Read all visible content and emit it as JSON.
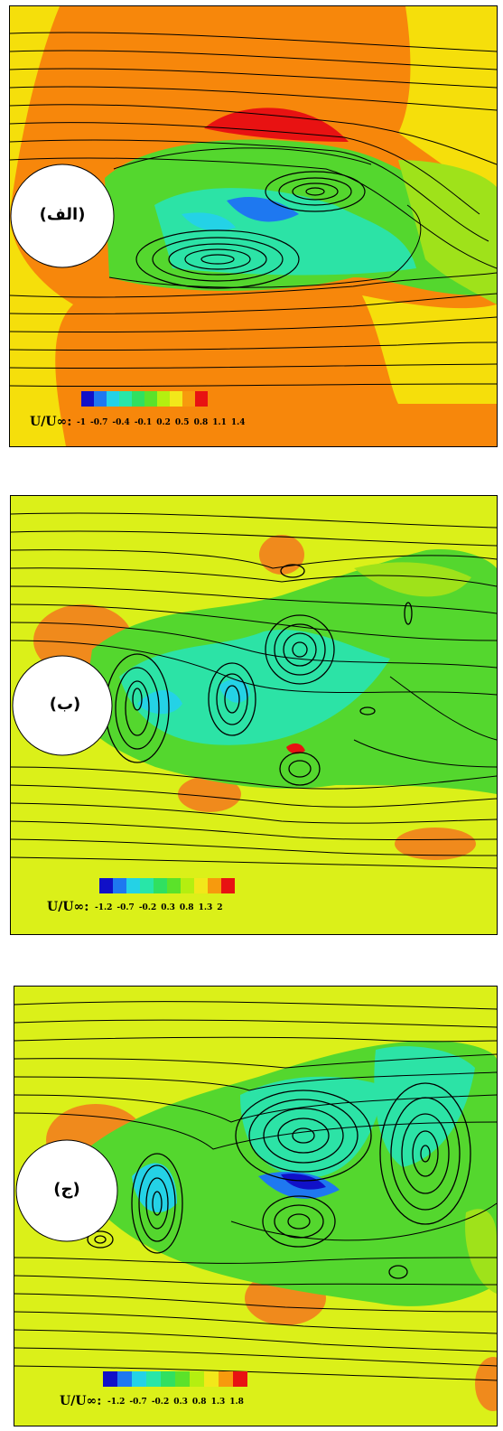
{
  "panels": [
    {
      "label": "(الف)",
      "background": "#f5df0b",
      "legend": {
        "variable": "U/U∞:",
        "ticks": [
          "-1",
          "-0.7",
          "-0.4",
          "-0.1",
          "0.2",
          "0.5",
          "0.8",
          "1.1",
          "1.4"
        ],
        "colors": [
          "#1010c8",
          "#1e78f0",
          "#24d2e6",
          "#28e6a8",
          "#30e060",
          "#5be22a",
          "#b4ef10",
          "#f2e81a",
          "#f79a0d",
          "#e81212"
        ]
      }
    },
    {
      "label": "(ب)",
      "background": "#dbf019",
      "legend": {
        "variable": "U/U∞:",
        "ticks": [
          "-1.2",
          "-0.7",
          "-0.2",
          "0.3",
          "0.8",
          "1.3",
          "2"
        ],
        "colors": [
          "#1010c8",
          "#1e78f0",
          "#24d2e6",
          "#28e6a8",
          "#30e060",
          "#5be22a",
          "#b4ef10",
          "#f2e81a",
          "#f79a0d",
          "#e81212"
        ]
      }
    },
    {
      "label": "(ج)",
      "background": "#dbf019",
      "legend": {
        "variable": "U/U∞:",
        "ticks": [
          "-1.2",
          "-0.7",
          "-0.2",
          "0.3",
          "0.8",
          "1.3",
          "1.8"
        ],
        "colors": [
          "#1010c8",
          "#1e78f0",
          "#24d2e6",
          "#28e6a8",
          "#30e060",
          "#5be22a",
          "#b4ef10",
          "#f2e81a",
          "#f79a0d",
          "#e81212"
        ]
      }
    }
  ]
}
